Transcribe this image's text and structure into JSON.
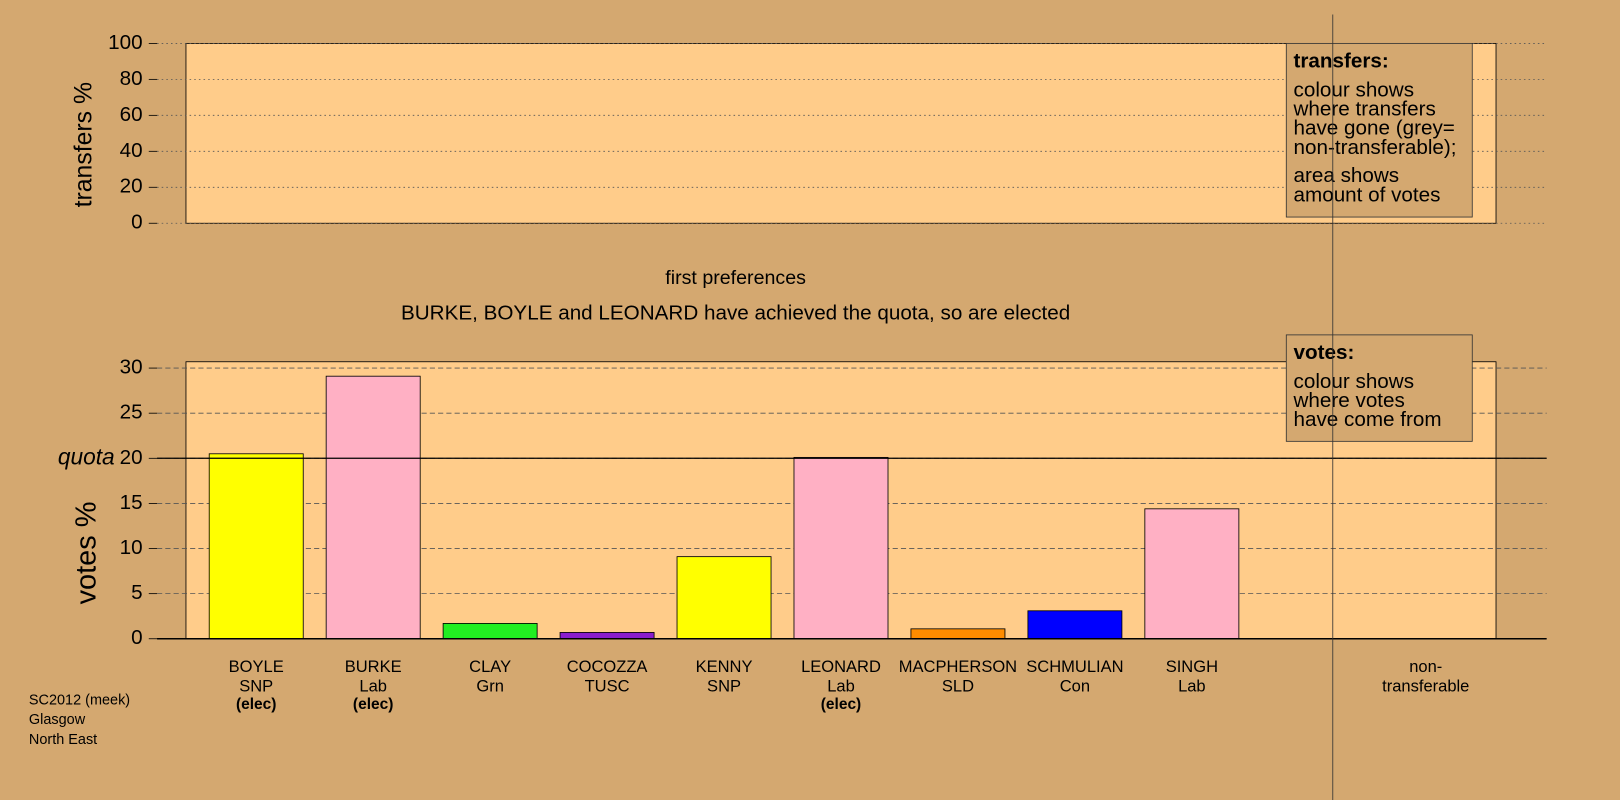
{
  "chart_data": [
    {
      "type": "empty",
      "ylabel": "transfers %",
      "ylim": [
        0,
        100
      ],
      "yticks": [
        0,
        20,
        40,
        60,
        80,
        100
      ],
      "grid": true,
      "legend": {
        "title": "transfers:",
        "lines": [
          "colour shows",
          "where transfers",
          "have gone (grey=",
          "non-transferable);",
          "area shows",
          "amount of votes"
        ]
      }
    },
    {
      "type": "bar",
      "title": "first preferences",
      "subtitle": "BURKE, BOYLE and LEONARD have achieved the quota, so are elected",
      "ylabel": "votes %",
      "ylim": [
        0,
        30.7
      ],
      "yticks": [
        0,
        5,
        10,
        15,
        20,
        25,
        30
      ],
      "grid": true,
      "quota": {
        "value": 20,
        "label": "quota"
      },
      "categories": [
        "BOYLE",
        "BURKE",
        "CLAY",
        "COCOZZA",
        "KENNY",
        "LEONARD",
        "MACPHERSON",
        "SCHMULIAN",
        "SINGH"
      ],
      "parties": [
        "SNP",
        "Lab",
        "Grn",
        "TUSC",
        "SNP",
        "Lab",
        "SLD",
        "Con",
        "Lab"
      ],
      "status": [
        "(elec)",
        "(elec)",
        null,
        null,
        null,
        "(elec)",
        null,
        null,
        null
      ],
      "values": [
        20.5,
        29.1,
        1.7,
        0.7,
        9.1,
        20.1,
        1.1,
        3.1,
        14.4
      ],
      "colors": [
        "#ffff00",
        "#ffb0c4",
        "#22ee22",
        "#8a1ccc",
        "#ffff00",
        "#ffb0c4",
        "#ff8c00",
        "#0000ff",
        "#ffb0c4"
      ],
      "nontransferable_label": [
        "non-",
        "transferable"
      ],
      "legend": {
        "title": "votes:",
        "lines": [
          "colour shows",
          "where votes",
          "have come from"
        ]
      }
    }
  ],
  "footer": [
    "SC2012 (meek)",
    "Glasgow",
    "North East"
  ]
}
